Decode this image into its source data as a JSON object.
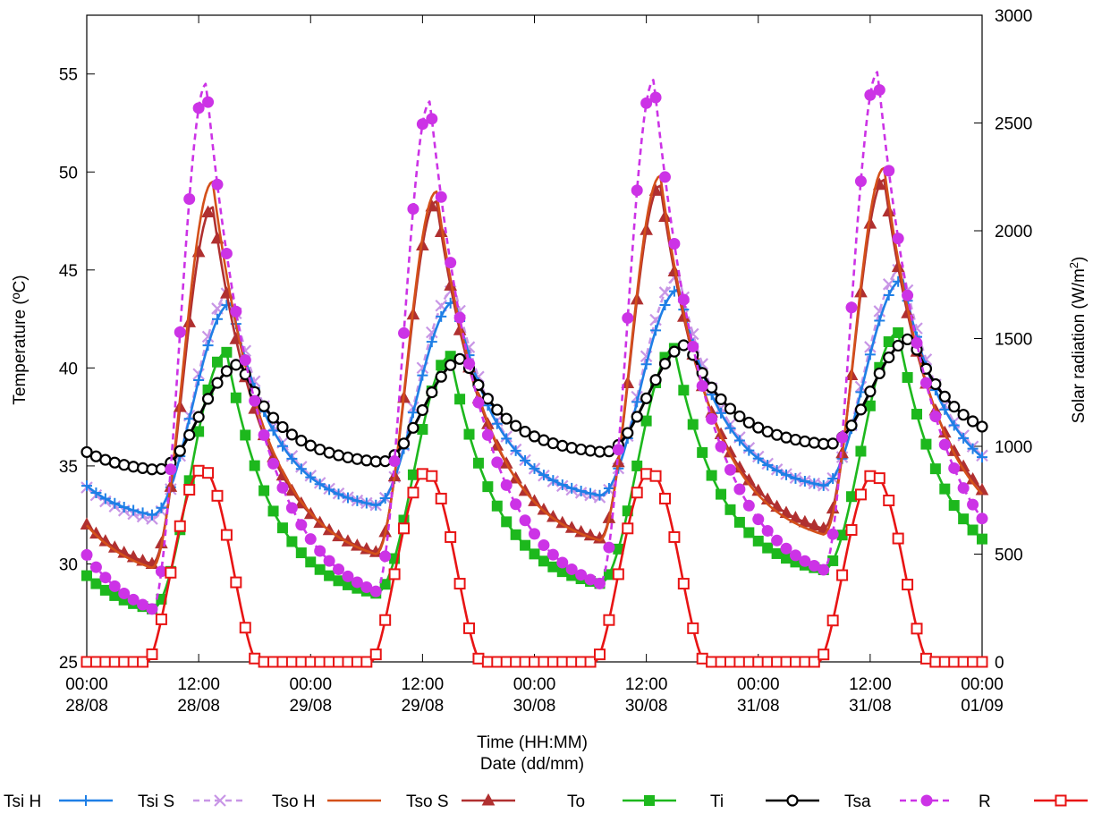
{
  "chart_data": {
    "type": "line",
    "xlabel": "Time (HH:MM)",
    "xlabel2": "Date (dd/mm)",
    "ylabel_left": "Temperature (ºC)",
    "ylabel_right_main": "Solar radiation (W/m",
    "ylabel_right_sup": "2",
    "ylabel_right_close": ")",
    "ylim_left": [
      25,
      58
    ],
    "ylim_right": [
      0,
      3000
    ],
    "xlim_hours": [
      0,
      96
    ],
    "yticks_left": [
      "25",
      "30",
      "35",
      "40",
      "45",
      "50",
      "55"
    ],
    "yticks_right": [
      "0",
      "500",
      "1000",
      "1500",
      "2000",
      "2500",
      "3000"
    ],
    "xticks": [
      {
        "time": "00:00",
        "date": "28/08"
      },
      {
        "time": "12:00",
        "date": "28/08"
      },
      {
        "time": "00:00",
        "date": "29/08"
      },
      {
        "time": "12:00",
        "date": "29/08"
      },
      {
        "time": "00:00",
        "date": "30/08"
      },
      {
        "time": "12:00",
        "date": "30/08"
      },
      {
        "time": "00:00",
        "date": "31/08"
      },
      {
        "time": "12:00",
        "date": "31/08"
      },
      {
        "time": "00:00",
        "date": "01/09"
      }
    ],
    "grid": false,
    "legend_position": "bottom",
    "series": [
      {
        "name": "Tsi H",
        "color": "#1E7FE6",
        "marker": "plus",
        "dash": false,
        "axis": "left",
        "min": [
          32.5,
          33.0,
          33.5,
          34.0
        ],
        "max": [
          43.3,
          43.4,
          44.0,
          44.5
        ],
        "peak_hour": 15.5,
        "min_hour": 7
      },
      {
        "name": "Tsi S",
        "color": "#C896E6",
        "marker": "cross",
        "dash": true,
        "axis": "left",
        "min": [
          32.3,
          33.0,
          33.4,
          34.0
        ],
        "max": [
          43.9,
          44.0,
          44.7,
          45.1
        ],
        "peak_hour": 15.5,
        "min_hour": 7
      },
      {
        "name": "Tso H",
        "color": "#D4501A",
        "marker": "none",
        "dash": false,
        "axis": "left",
        "min": [
          29.8,
          30.5,
          31.2,
          31.5
        ],
        "max": [
          49.5,
          49.0,
          49.8,
          50.2
        ],
        "peak_hour": 13.5,
        "min_hour": 7
      },
      {
        "name": "Tso S",
        "color": "#B03030",
        "marker": "triangle",
        "dash": false,
        "axis": "left",
        "min": [
          30.0,
          30.6,
          31.3,
          31.8
        ],
        "max": [
          48.2,
          48.5,
          49.3,
          49.6
        ],
        "peak_hour": 13.5,
        "min_hour": 7
      },
      {
        "name": "To",
        "color": "#1DB81D",
        "marker": "square-filled",
        "dash": false,
        "axis": "left",
        "min": [
          27.7,
          28.5,
          29.0,
          29.7
        ],
        "max": [
          40.8,
          40.6,
          41.0,
          41.8
        ],
        "peak_hour": 15.0,
        "min_hour": 7
      },
      {
        "name": "Ti",
        "color": "#000000",
        "marker": "circle",
        "dash": false,
        "axis": "left",
        "min": [
          34.8,
          35.2,
          35.7,
          36.1
        ],
        "max": [
          40.2,
          40.5,
          41.2,
          41.5
        ],
        "peak_hour": 16.5,
        "min_hour": 7.5
      },
      {
        "name": "Tsa",
        "color": "#CC33E6",
        "marker": "circle-filled",
        "dash": true,
        "axis": "left",
        "min": [
          27.7,
          28.6,
          29.0,
          29.7
        ],
        "max": [
          54.5,
          53.6,
          54.7,
          55.1
        ],
        "peak_hour": 12.8,
        "min_hour": 7
      },
      {
        "name": "R",
        "color": "#E81414",
        "marker": "square",
        "dash": false,
        "axis": "right",
        "max": [
          895,
          880,
          880,
          870
        ],
        "peak_hour": 12.5,
        "sunrise": 6.5,
        "sunset": 18.3
      }
    ]
  }
}
